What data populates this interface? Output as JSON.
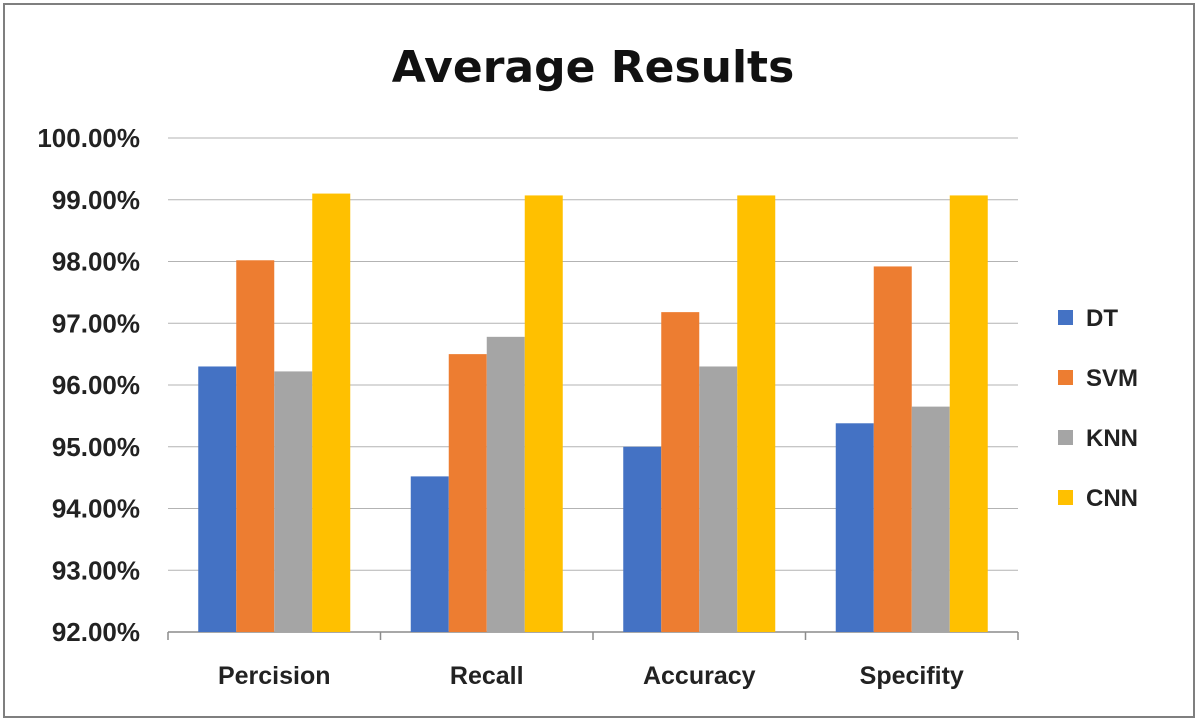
{
  "chart_data": {
    "type": "bar",
    "title": "Average Results",
    "xlabel": "",
    "ylabel": "",
    "categories": [
      "Percision",
      "Recall",
      "Accuracy",
      "Specifity"
    ],
    "ylim": [
      92,
      100
    ],
    "yticks": [
      "92.00%",
      "93.00%",
      "94.00%",
      "95.00%",
      "96.00%",
      "97.00%",
      "98.00%",
      "99.00%",
      "100.00%"
    ],
    "grid": true,
    "legend_position": "right",
    "series": [
      {
        "name": "DT",
        "color": "#4472c4",
        "values": [
          96.3,
          94.52,
          95.0,
          95.38
        ]
      },
      {
        "name": "SVM",
        "color": "#ed7d31",
        "values": [
          98.02,
          96.5,
          97.18,
          97.92
        ]
      },
      {
        "name": "KNN",
        "color": "#a5a5a5",
        "values": [
          96.22,
          96.78,
          96.3,
          95.65
        ]
      },
      {
        "name": "CNN",
        "color": "#ffc000",
        "values": [
          99.1,
          99.07,
          99.07,
          99.07
        ]
      }
    ]
  }
}
